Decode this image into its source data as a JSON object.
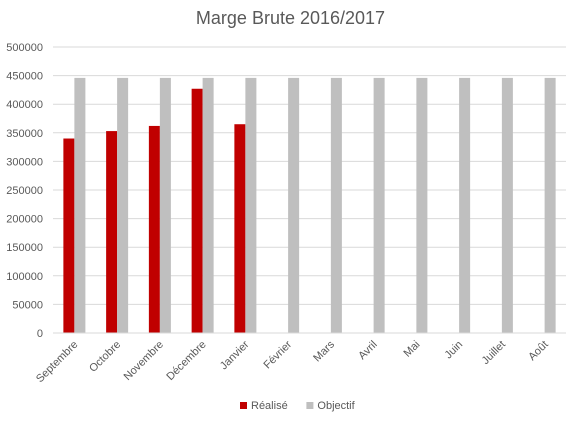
{
  "chart_data": {
    "type": "bar",
    "title": "Marge Brute 2016/2017",
    "xlabel": "",
    "ylabel": "",
    "categories": [
      "Septembre",
      "Octobre",
      "Novembre",
      "Décembre",
      "Janvier",
      "Février",
      "Mars",
      "Avril",
      "Mai",
      "Juin",
      "Juillet",
      "Août"
    ],
    "series": [
      {
        "name": "Réalisé",
        "color": "#c00000",
        "values": [
          340000,
          353000,
          362000,
          427000,
          365000,
          null,
          null,
          null,
          null,
          null,
          null,
          null
        ]
      },
      {
        "name": "Objectif",
        "color": "#bfbfbf",
        "values": [
          446000,
          446000,
          446000,
          446000,
          446000,
          446000,
          446000,
          446000,
          446000,
          446000,
          446000,
          446000
        ]
      }
    ],
    "ylim": [
      0,
      500000
    ],
    "yticks": [
      0,
      50000,
      100000,
      150000,
      200000,
      250000,
      300000,
      350000,
      400000,
      450000,
      500000
    ],
    "grid": true,
    "legend_position": "bottom"
  }
}
